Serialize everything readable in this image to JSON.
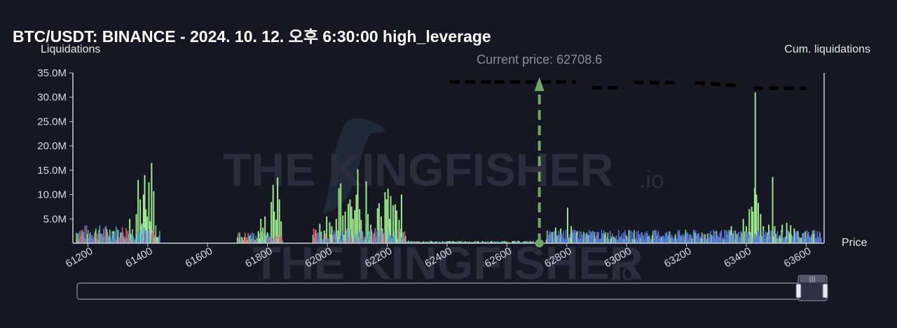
{
  "page": {
    "title": "BTC/USDT: BINANCE - 2024. 10. 12. 오후 6:30:00 high_leverage"
  },
  "watermark": {
    "main": "THE KINGFISHER",
    "suffix": ".io"
  },
  "chart_data": {
    "type": "bar",
    "title": "BTC/USDT: BINANCE - 2024. 10. 12. 오후 6:30:00 high_leverage",
    "xlabel": "Price",
    "ylabel": "Liquidations",
    "y2label": "Cum. liquidations",
    "xlim": [
      61150,
      63660
    ],
    "ylim": [
      0,
      35000000
    ],
    "x_ticks": [
      61200,
      61400,
      61600,
      61800,
      62000,
      62200,
      62400,
      62600,
      62800,
      63000,
      63200,
      63400,
      63600
    ],
    "x_tick_labels": [
      "61200",
      "61400",
      "61600",
      "61800",
      "62000",
      "62200",
      "62400",
      "62600",
      "62800",
      "63000",
      "63200",
      "63400",
      "63600"
    ],
    "y_ticks": [
      5000000,
      10000000,
      15000000,
      20000000,
      25000000,
      30000000,
      35000000
    ],
    "y_tick_labels": [
      "5.0M",
      "10.0M",
      "15.0M",
      "20.0M",
      "25.0M",
      "30.0M",
      "35.0M"
    ],
    "current_price": 62708.6,
    "current_price_label": "Current price: 62708.6",
    "grid": false,
    "colors": {
      "green": "#9ce68c",
      "blue": "#5b7fd9",
      "red": "#e06a7a",
      "teal": "#4fb3c8",
      "arrow": "#6fa864",
      "axis": "#c8ccd6"
    },
    "series": [
      {
        "color": "green",
        "points": [
          [
            61285,
            2500000
          ],
          [
            61300,
            1500000
          ],
          [
            61310,
            2200000
          ],
          [
            61320,
            1200000
          ],
          [
            61340,
            5000000
          ],
          [
            61362,
            6000000
          ],
          [
            61368,
            13000000
          ],
          [
            61375,
            9000000
          ],
          [
            61381,
            4000000
          ],
          [
            61386,
            10000000
          ],
          [
            61390,
            14000000
          ],
          [
            61394,
            7000000
          ],
          [
            61398,
            5500000
          ],
          [
            61404,
            12500000
          ],
          [
            61408,
            4500000
          ],
          [
            61413,
            16500000
          ],
          [
            61420,
            10700000
          ],
          [
            61430,
            1200000
          ],
          [
            61700,
            1200000
          ],
          [
            61740,
            1500000
          ],
          [
            61770,
            2500000
          ],
          [
            61778,
            5000000
          ],
          [
            61785,
            3200000
          ],
          [
            61792,
            5500000
          ],
          [
            61800,
            2200000
          ],
          [
            61813,
            8500000
          ],
          [
            61819,
            12000000
          ],
          [
            61823,
            6500000
          ],
          [
            61829,
            4800000
          ],
          [
            61834,
            13500000
          ],
          [
            61840,
            9000000
          ],
          [
            61846,
            4500000
          ],
          [
            61960,
            2000000
          ],
          [
            61975,
            4000000
          ],
          [
            61990,
            2600000
          ],
          [
            61998,
            5500000
          ],
          [
            62008,
            4300000
          ],
          [
            62015,
            3500000
          ],
          [
            62030,
            5000000
          ],
          [
            62039,
            11300000
          ],
          [
            62045,
            12300000
          ],
          [
            62052,
            5700000
          ],
          [
            62060,
            6500000
          ],
          [
            62070,
            8100000
          ],
          [
            62076,
            9000000
          ],
          [
            62081,
            7500000
          ],
          [
            62086,
            5000000
          ],
          [
            62092,
            6800000
          ],
          [
            62097,
            10000000
          ],
          [
            62102,
            15200000
          ],
          [
            62108,
            7000000
          ],
          [
            62113,
            4800000
          ],
          [
            62130,
            12700000
          ],
          [
            62136,
            6000000
          ],
          [
            62145,
            3800000
          ],
          [
            62168,
            7200000
          ],
          [
            62173,
            8200000
          ],
          [
            62180,
            5500000
          ],
          [
            62184,
            3000000
          ],
          [
            62193,
            10500000
          ],
          [
            62198,
            9000000
          ],
          [
            62203,
            11200000
          ],
          [
            62208,
            5000000
          ],
          [
            62212,
            9700000
          ],
          [
            62220,
            7800000
          ],
          [
            62227,
            8000000
          ],
          [
            62232,
            6700000
          ],
          [
            62240,
            4800000
          ],
          [
            62248,
            10000000
          ],
          [
            62745,
            1500000
          ],
          [
            62763,
            3200000
          ],
          [
            62780,
            3000000
          ],
          [
            62803,
            7300000
          ],
          [
            62815,
            3500000
          ],
          [
            62835,
            2500000
          ],
          [
            62880,
            1200000
          ],
          [
            62920,
            1400000
          ],
          [
            62950,
            1200000
          ],
          [
            63000,
            1500000
          ],
          [
            63100,
            1200000
          ],
          [
            63180,
            1500000
          ],
          [
            63230,
            2000000
          ],
          [
            63300,
            2500000
          ],
          [
            63350,
            3500000
          ],
          [
            63390,
            5000000
          ],
          [
            63400,
            3500000
          ],
          [
            63410,
            7000000
          ],
          [
            63418,
            7500000
          ],
          [
            63422,
            6500000
          ],
          [
            63428,
            11300000
          ],
          [
            63430,
            31000000
          ],
          [
            63434,
            10000000
          ],
          [
            63440,
            8300000
          ],
          [
            63448,
            6000000
          ],
          [
            63457,
            3500000
          ],
          [
            63475,
            3800000
          ],
          [
            63488,
            13600000
          ],
          [
            63495,
            3500000
          ],
          [
            63520,
            3800000
          ],
          [
            63535,
            4200000
          ],
          [
            63548,
            3700000
          ],
          [
            63560,
            3000000
          ],
          [
            63572,
            2500000
          ],
          [
            63590,
            2000000
          ],
          [
            63612,
            1000000
          ]
        ]
      }
    ]
  }
}
